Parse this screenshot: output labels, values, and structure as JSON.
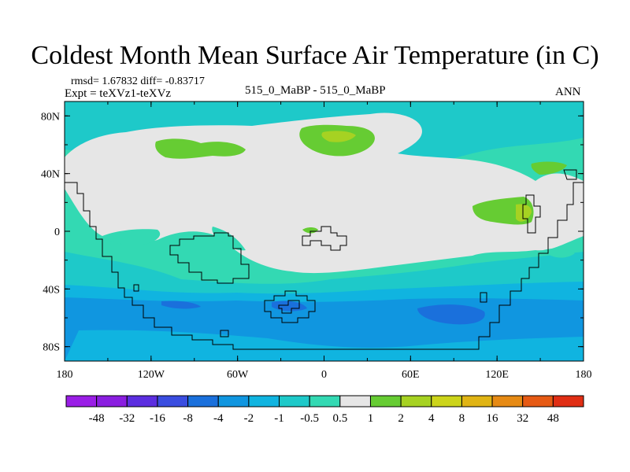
{
  "title": "Coldest Month Mean Surface Air Temperature (in C)",
  "stats": "rmsd= 1.67832 diff= -0.83717",
  "experiment": "Expt = teXVz1-teXVz",
  "center_label": "515_0_MaBP - 515_0_MaBP",
  "season": "ANN",
  "map": {
    "lon_ticks": [
      "180",
      "120W",
      "60W",
      "0",
      "60E",
      "120E",
      "180"
    ],
    "lat_ticks": [
      "80N",
      "40N",
      "0",
      "40S",
      "80S"
    ]
  },
  "colors": {
    "land_gray": "#e6e6e6",
    "c_m0_5": "#33d9b3",
    "c_m1": "#1ec9c9",
    "c_m2": "#10b4e0",
    "c_m4": "#1096e0",
    "c_m8": "#1a70dc",
    "c_p1": "#66cc33",
    "c_p2": "#a6d222"
  },
  "colorbar": {
    "labels": [
      "-48",
      "-32",
      "-16",
      "-8",
      "-4",
      "-2",
      "-1",
      "-0.5",
      "0.5",
      "1",
      "2",
      "4",
      "8",
      "16",
      "32",
      "48"
    ],
    "colors": [
      "#8a1ee0",
      "#5c2ee0",
      "#3a4de0",
      "#1a70dc",
      "#1096e0",
      "#10b4e0",
      "#1ec9c9",
      "#33d9b3",
      "#e6e6e6",
      "#66cc33",
      "#a6d222",
      "#ccd41a",
      "#e0b414",
      "#e68a14",
      "#e65a14",
      "#e02e14"
    ]
  }
}
